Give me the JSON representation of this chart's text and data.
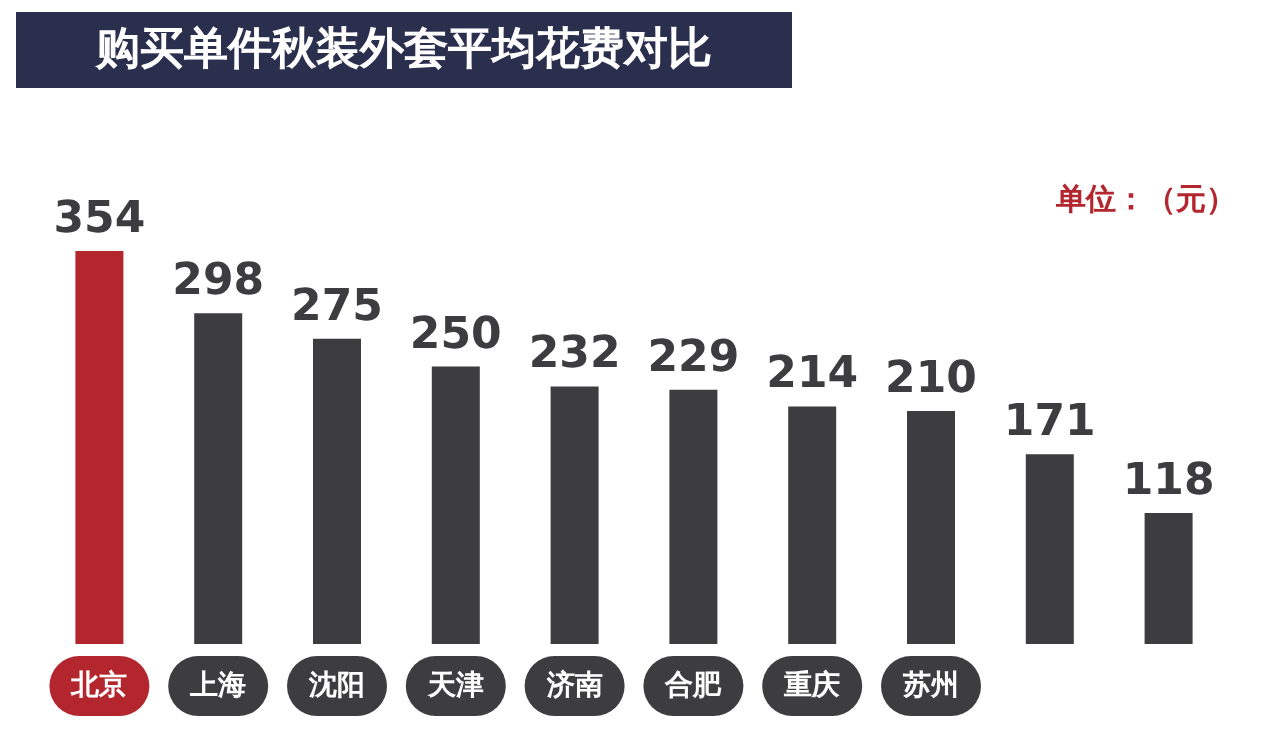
{
  "chart_data": {
    "type": "bar",
    "title": "购买单件秋装外套平均花费对比",
    "annotations": [
      "单位：（元）"
    ],
    "categories": [
      "北京",
      "上海",
      "沈阳",
      "天津",
      "济南",
      "合肥",
      "重庆",
      "苏州",
      null,
      null
    ],
    "values": [
      354,
      298,
      275,
      250,
      232,
      229,
      214,
      210,
      171,
      118
    ],
    "colors": [
      "#b3262e",
      "#3d3d3f",
      "#3d3d3f",
      "#3d3d3f",
      "#3d3d3f",
      "#3d3d3f",
      "#3d3d3f",
      "#3d3d3f",
      "#3d3d3f",
      "#3d3d3f"
    ],
    "data_labels": true
  }
}
